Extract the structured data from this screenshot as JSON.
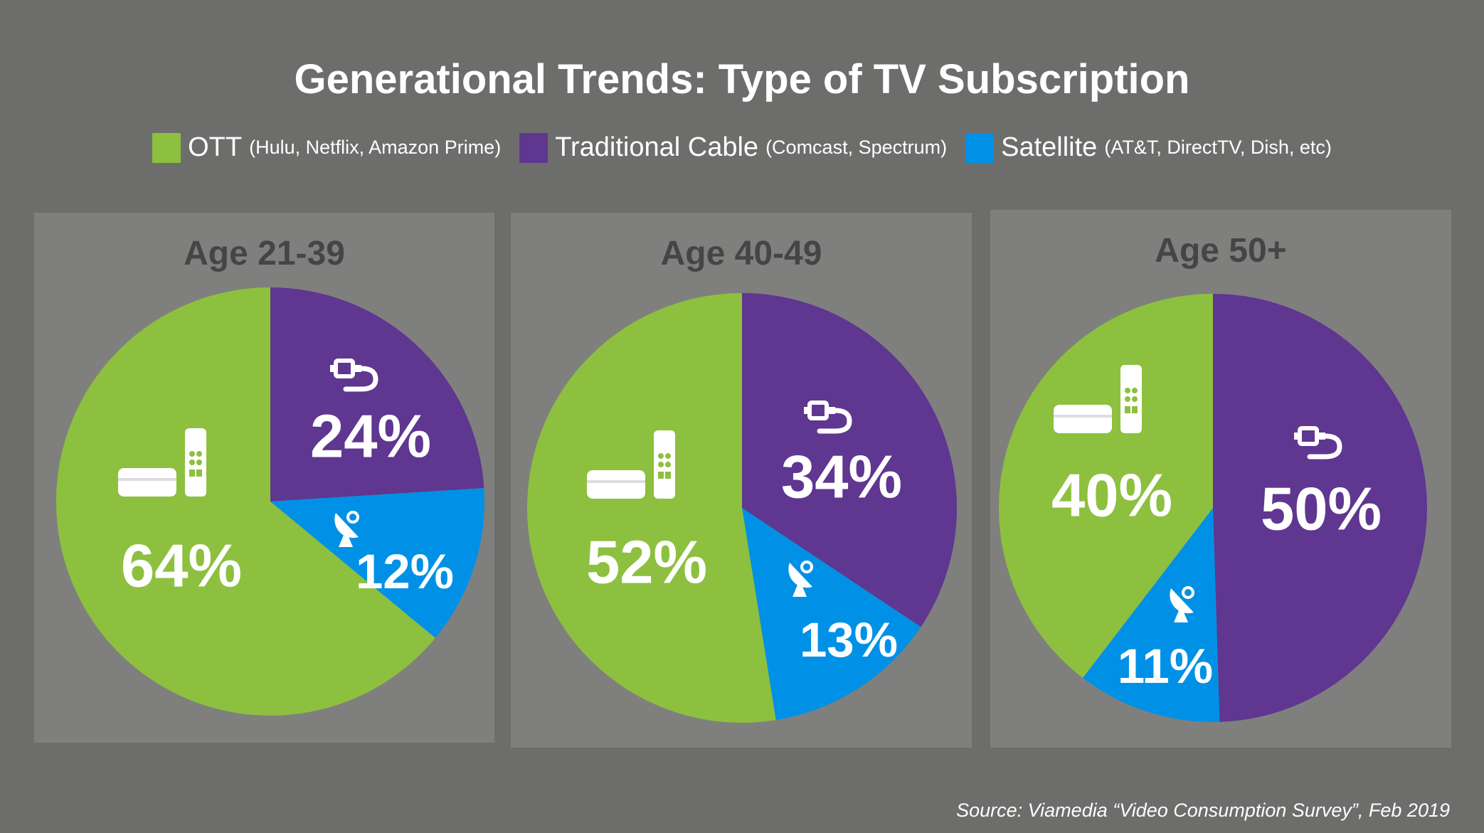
{
  "colors": {
    "background": "#6d6e6c",
    "panel": "#7f807e",
    "OTT": "#8dc03f",
    "Traditional Cable": "#5f3690",
    "Satellite": "#0091e6"
  },
  "chart_data": {
    "type": "pie",
    "title": "Generational Trends:  Type of TV Subscription",
    "legend": [
      {
        "name": "OTT",
        "detail": "(Hulu, Netflix, Amazon Prime)",
        "color": "#8dc03f",
        "icon": "streaming-box-remote-icon"
      },
      {
        "name": "Traditional Cable",
        "detail": "(Comcast, Spectrum)",
        "color": "#5f3690",
        "icon": "cable-plug-icon"
      },
      {
        "name": "Satellite",
        "detail": "(AT&T, DirectTV, Dish, etc)",
        "color": "#0091e6",
        "icon": "satellite-dish-icon"
      }
    ],
    "legend_placement": "top",
    "charts": [
      {
        "title": "Age 21-39",
        "slices": [
          {
            "name": "Traditional Cable",
            "value": 24,
            "label": "24%"
          },
          {
            "name": "Satellite",
            "value": 12,
            "label": "12%"
          },
          {
            "name": "OTT",
            "value": 64,
            "label": "64%"
          }
        ]
      },
      {
        "title": "Age 40-49",
        "slices": [
          {
            "name": "Traditional Cable",
            "value": 34,
            "label": "34%"
          },
          {
            "name": "Satellite",
            "value": 13,
            "label": "13%"
          },
          {
            "name": "OTT",
            "value": 52,
            "label": "52%"
          }
        ]
      },
      {
        "title": "Age 50+",
        "slices": [
          {
            "name": "Traditional Cable",
            "value": 50,
            "label": "50%"
          },
          {
            "name": "Satellite",
            "value": 11,
            "label": "11%"
          },
          {
            "name": "OTT",
            "value": 40,
            "label": "40%"
          }
        ]
      }
    ],
    "source": "Source: Viamedia “Video Consumption Survey”, Feb 2019"
  }
}
